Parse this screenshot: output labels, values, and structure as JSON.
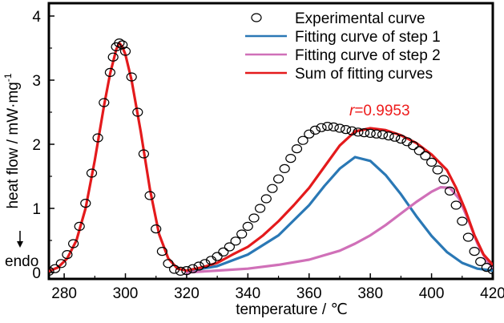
{
  "chart_data": {
    "type": "line",
    "xlabel": "temperature / ℃",
    "ylabel": "heat flow / mW·mg",
    "ylabel_sup": "-1",
    "xlim": [
      275,
      420
    ],
    "ylim": [
      -0.1,
      4.2
    ],
    "xticks": [
      280,
      300,
      320,
      340,
      360,
      380,
      400,
      420
    ],
    "yticks": [
      0,
      1,
      2,
      3,
      4
    ],
    "legend_position": "top-right",
    "annotation": {
      "r_symbol": "r",
      "r_value": "=0.9953",
      "color": "#ee1c1c"
    },
    "endo_label": "endo",
    "series": [
      {
        "name": "Experimental curve",
        "style": "open-circles",
        "color": "#000000",
        "x": [
          275,
          277,
          279,
          281,
          283,
          285,
          287,
          289,
          291,
          293,
          295,
          296,
          297,
          298,
          299,
          300,
          302,
          304,
          306,
          308,
          310,
          312,
          314,
          316,
          318,
          320,
          322,
          324,
          326,
          328,
          330,
          332,
          334,
          336,
          338,
          340,
          342,
          344,
          346,
          348,
          350,
          352,
          354,
          356,
          358,
          360,
          362,
          364,
          366,
          368,
          370,
          372,
          374,
          376,
          378,
          380,
          382,
          384,
          386,
          388,
          390,
          392,
          394,
          396,
          398,
          400,
          402,
          404,
          406,
          408,
          410,
          412,
          414,
          416,
          418,
          420
        ],
        "y": [
          0.02,
          0.06,
          0.14,
          0.28,
          0.45,
          0.72,
          1.08,
          1.55,
          2.1,
          2.65,
          3.12,
          3.36,
          3.52,
          3.58,
          3.55,
          3.45,
          3.05,
          2.5,
          1.85,
          1.2,
          0.68,
          0.33,
          0.14,
          0.05,
          0.02,
          0.03,
          0.06,
          0.1,
          0.14,
          0.19,
          0.25,
          0.32,
          0.4,
          0.49,
          0.6,
          0.72,
          0.85,
          1.0,
          1.15,
          1.31,
          1.46,
          1.62,
          1.78,
          1.93,
          2.06,
          2.16,
          2.22,
          2.26,
          2.28,
          2.27,
          2.25,
          2.23,
          2.21,
          2.19,
          2.18,
          2.17,
          2.16,
          2.15,
          2.13,
          2.11,
          2.08,
          2.04,
          1.98,
          1.9,
          1.82,
          1.72,
          1.6,
          1.45,
          1.27,
          1.05,
          0.8,
          0.55,
          0.33,
          0.17,
          0.08,
          0.04
        ]
      },
      {
        "name": "Fitting curve of step 1",
        "style": "line",
        "color": "#2a78b5",
        "x": [
          320,
          330,
          340,
          350,
          360,
          365,
          370,
          375,
          380,
          385,
          390,
          395,
          400,
          405,
          410,
          415,
          420
        ],
        "y": [
          0.02,
          0.1,
          0.28,
          0.58,
          1.05,
          1.35,
          1.62,
          1.8,
          1.74,
          1.52,
          1.22,
          0.88,
          0.57,
          0.32,
          0.15,
          0.06,
          0.03
        ]
      },
      {
        "name": "Fitting curve of step 2",
        "style": "line",
        "color": "#d070b8",
        "x": [
          320,
          330,
          340,
          350,
          360,
          370,
          375,
          380,
          385,
          390,
          395,
          400,
          403,
          406,
          409,
          412,
          415,
          418,
          420
        ],
        "y": [
          0.0,
          0.03,
          0.06,
          0.12,
          0.2,
          0.34,
          0.45,
          0.58,
          0.74,
          0.92,
          1.1,
          1.26,
          1.33,
          1.32,
          1.15,
          0.82,
          0.45,
          0.18,
          0.08
        ]
      },
      {
        "name": "Sum of fitting curves",
        "style": "line",
        "color": "#e41a1c",
        "x": [
          275,
          278,
          281,
          284,
          287,
          290,
          293,
          295,
          297,
          298,
          299,
          300,
          302,
          305,
          308,
          311,
          314,
          317,
          320,
          325,
          330,
          335,
          340,
          345,
          350,
          355,
          360,
          365,
          370,
          375,
          380,
          385,
          390,
          395,
          400,
          405,
          408,
          411,
          414,
          417,
          420
        ],
        "y": [
          0.02,
          0.08,
          0.22,
          0.5,
          1.0,
          1.75,
          2.6,
          3.1,
          3.48,
          3.58,
          3.52,
          3.4,
          3.0,
          2.2,
          1.3,
          0.6,
          0.22,
          0.06,
          0.03,
          0.08,
          0.15,
          0.28,
          0.4,
          0.58,
          0.8,
          1.05,
          1.32,
          1.65,
          1.98,
          2.2,
          2.25,
          2.22,
          2.14,
          2.02,
          1.84,
          1.6,
          1.32,
          0.98,
          0.58,
          0.28,
          0.12
        ]
      }
    ]
  }
}
